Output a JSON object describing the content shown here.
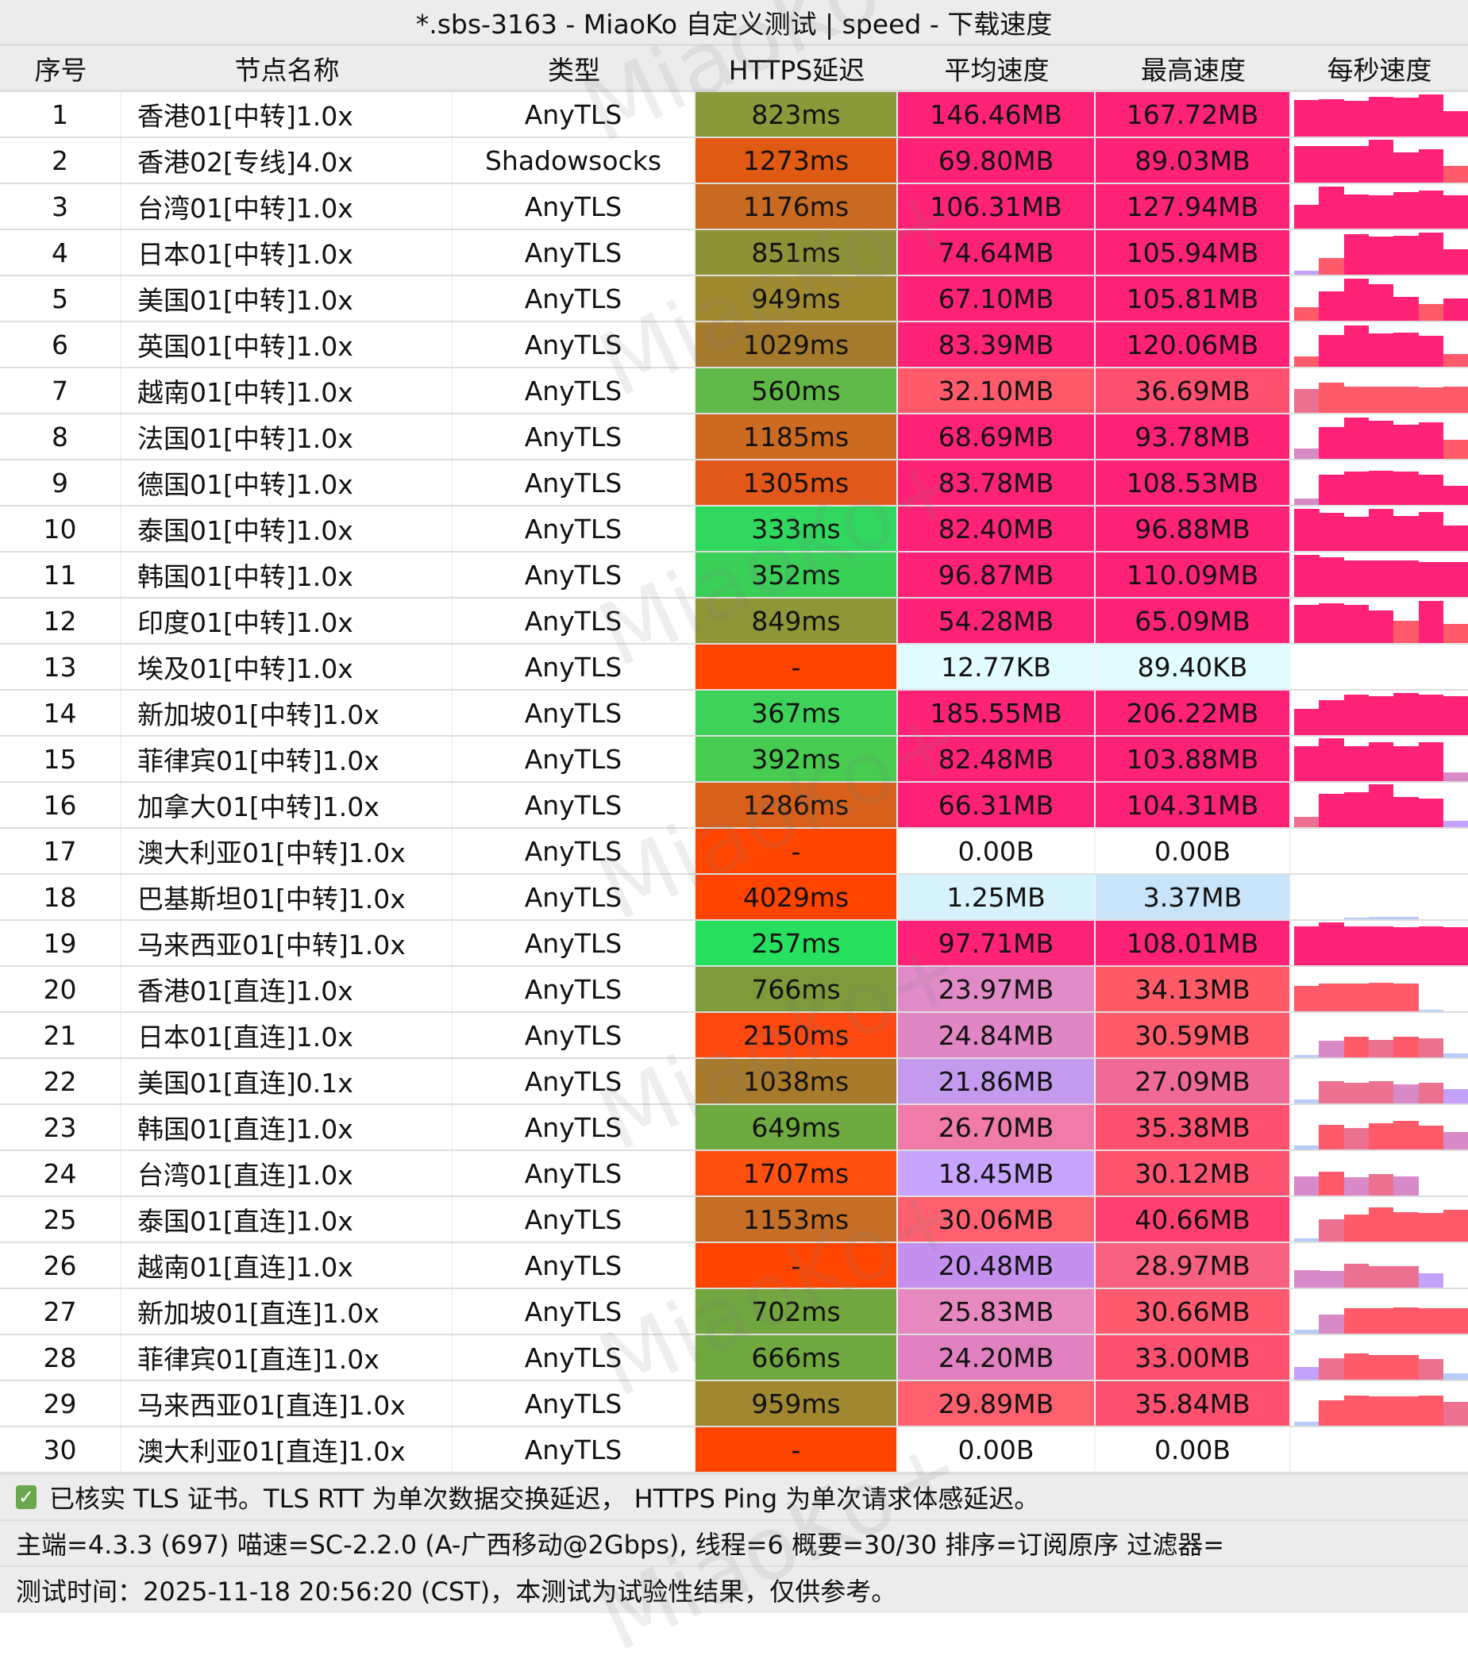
{
  "title": "*.sbs-3163 - MiaoKo 自定义测试 | speed - 下载速度",
  "watermark": "MiaoKo+",
  "columns": [
    "序号",
    "节点名称",
    "类型",
    "HTTPS延迟",
    "平均速度",
    "最高速度",
    "每秒速度"
  ],
  "rows": [
    {
      "idx": "1",
      "name": "香港01[中转]1.0x",
      "type": "AnyTLS",
      "latency": "823ms",
      "lat_color": "#8a9a3a",
      "avg": "146.46MB",
      "avg_color": "#ff2277",
      "max": "167.72MB",
      "max_color": "#ff2277",
      "bars": [
        0.85,
        0.87,
        0.83,
        0.92,
        0.9,
        0.98,
        0.6
      ]
    },
    {
      "idx": "2",
      "name": "香港02[专线]4.0x",
      "type": "Shadowsocks",
      "latency": "1273ms",
      "lat_color": "#e05a14",
      "avg": "69.80MB",
      "avg_color": "#ff2277",
      "max": "89.03MB",
      "max_color": "#ff2277",
      "bars": [
        0.85,
        0.85,
        0.85,
        1.0,
        0.7,
        0.78,
        0.38
      ]
    },
    {
      "idx": "3",
      "name": "台湾01[中转]1.0x",
      "type": "AnyTLS",
      "latency": "1176ms",
      "lat_color": "#c86a22",
      "avg": "106.31MB",
      "avg_color": "#ff2277",
      "max": "127.94MB",
      "max_color": "#ff2277",
      "bars": [
        0.55,
        0.98,
        0.8,
        0.78,
        0.85,
        0.88,
        0.78
      ]
    },
    {
      "idx": "4",
      "name": "日本01[中转]1.0x",
      "type": "AnyTLS",
      "latency": "851ms",
      "lat_color": "#8e9236",
      "avg": "74.64MB",
      "avg_color": "#ff2277",
      "max": "105.94MB",
      "max_color": "#ff2277",
      "bars": [
        0.1,
        0.38,
        0.95,
        0.88,
        0.9,
        0.98,
        0.6
      ]
    },
    {
      "idx": "5",
      "name": "美国01[中转]1.0x",
      "type": "AnyTLS",
      "latency": "949ms",
      "lat_color": "#a08a30",
      "avg": "67.10MB",
      "avg_color": "#ff2277",
      "max": "105.81MB",
      "max_color": "#ff2277",
      "bars": [
        0.32,
        0.68,
        0.98,
        0.85,
        0.55,
        0.38,
        0.52
      ]
    },
    {
      "idx": "6",
      "name": "英国01[中转]1.0x",
      "type": "AnyTLS",
      "latency": "1029ms",
      "lat_color": "#a47a2c",
      "avg": "83.39MB",
      "avg_color": "#ff2277",
      "max": "120.06MB",
      "max_color": "#ff2277",
      "bars": [
        0.25,
        0.75,
        0.96,
        0.78,
        0.8,
        0.73,
        0.3
      ]
    },
    {
      "idx": "7",
      "name": "越南01[中转]1.0x",
      "type": "AnyTLS",
      "latency": "560ms",
      "lat_color": "#60b848",
      "avg": "32.10MB",
      "avg_color": "#ff5a6a",
      "max": "36.69MB",
      "max_color": "#ff5070",
      "bars": [
        0.55,
        0.7,
        0.62,
        0.62,
        0.62,
        0.6,
        0.62
      ]
    },
    {
      "idx": "8",
      "name": "法国01[中转]1.0x",
      "type": "AnyTLS",
      "latency": "1185ms",
      "lat_color": "#cc6a22",
      "avg": "68.69MB",
      "avg_color": "#ff2277",
      "max": "93.78MB",
      "max_color": "#ff2277",
      "bars": [
        0.25,
        0.75,
        0.96,
        0.88,
        0.8,
        0.85,
        0.45
      ]
    },
    {
      "idx": "9",
      "name": "德国01[中转]1.0x",
      "type": "AnyTLS",
      "latency": "1305ms",
      "lat_color": "#e2581a",
      "avg": "83.78MB",
      "avg_color": "#ff2277",
      "max": "108.53MB",
      "max_color": "#ff2277",
      "bars": [
        0.15,
        0.7,
        0.78,
        0.8,
        0.78,
        0.7,
        0.45
      ]
    },
    {
      "idx": "10",
      "name": "泰国01[中转]1.0x",
      "type": "AnyTLS",
      "latency": "333ms",
      "lat_color": "#30d860",
      "avg": "82.40MB",
      "avg_color": "#ff2277",
      "max": "96.88MB",
      "max_color": "#ff2277",
      "bars": [
        0.98,
        0.88,
        0.8,
        0.98,
        0.82,
        0.9,
        0.6
      ]
    },
    {
      "idx": "11",
      "name": "韩国01[中转]1.0x",
      "type": "AnyTLS",
      "latency": "352ms",
      "lat_color": "#3ad058",
      "avg": "96.87MB",
      "avg_color": "#ff2277",
      "max": "110.09MB",
      "max_color": "#ff2277",
      "bars": [
        0.98,
        0.92,
        0.85,
        0.85,
        0.85,
        0.82,
        0.82
      ]
    },
    {
      "idx": "12",
      "name": "印度01[中转]1.0x",
      "type": "AnyTLS",
      "latency": "849ms",
      "lat_color": "#8e9638",
      "avg": "54.28MB",
      "avg_color": "#ff2277",
      "max": "65.09MB",
      "max_color": "#ff2277",
      "bars": [
        0.88,
        0.92,
        0.88,
        0.76,
        0.52,
        0.98,
        0.45
      ]
    },
    {
      "idx": "13",
      "name": "埃及01[中转]1.0x",
      "type": "AnyTLS",
      "latency": "-",
      "lat_color": "#ff4400",
      "avg": "12.77KB",
      "avg_color": "#e0fcff",
      "max": "89.40KB",
      "max_color": "#e0fcff",
      "bars": []
    },
    {
      "idx": "14",
      "name": "新加坡01[中转]1.0x",
      "type": "AnyTLS",
      "latency": "367ms",
      "lat_color": "#3ed25a",
      "avg": "185.55MB",
      "avg_color": "#ff2277",
      "max": "206.22MB",
      "max_color": "#ff2277",
      "bars": [
        0.62,
        0.82,
        0.95,
        0.9,
        0.98,
        0.95,
        0.9
      ]
    },
    {
      "idx": "15",
      "name": "菲律宾01[中转]1.0x",
      "type": "AnyTLS",
      "latency": "392ms",
      "lat_color": "#48cc50",
      "avg": "82.48MB",
      "avg_color": "#ff2277",
      "max": "103.88MB",
      "max_color": "#ff2277",
      "bars": [
        0.82,
        1.0,
        0.82,
        0.9,
        0.82,
        0.9,
        0.2
      ]
    },
    {
      "idx": "16",
      "name": "加拿大01[中转]1.0x",
      "type": "AnyTLS",
      "latency": "1286ms",
      "lat_color": "#d8601a",
      "avg": "66.31MB",
      "avg_color": "#ff2277",
      "max": "104.31MB",
      "max_color": "#ff2277",
      "bars": [
        0.25,
        0.78,
        0.82,
        1.0,
        0.7,
        0.66,
        0.15
      ]
    },
    {
      "idx": "17",
      "name": "澳大利亚01[中转]1.0x",
      "type": "AnyTLS",
      "latency": "-",
      "lat_color": "#ff4400",
      "avg": "0.00B",
      "avg_color": "#ffffff",
      "max": "0.00B",
      "max_color": "#ffffff",
      "bars": []
    },
    {
      "idx": "18",
      "name": "巴基斯坦01[中转]1.0x",
      "type": "AnyTLS",
      "latency": "4029ms",
      "lat_color": "#ff4400",
      "avg": "1.25MB",
      "avg_color": "#d6f2fc",
      "max": "3.37MB",
      "max_color": "#c8e4fa",
      "bars": [
        0,
        0,
        0.03,
        0.05,
        0.05,
        0,
        0
      ]
    },
    {
      "idx": "19",
      "name": "马来西亚01[中转]1.0x",
      "type": "AnyTLS",
      "latency": "257ms",
      "lat_color": "#28e060",
      "avg": "97.71MB",
      "avg_color": "#ff2277",
      "max": "108.01MB",
      "max_color": "#ff2277",
      "bars": [
        0.9,
        1.0,
        0.9,
        0.9,
        0.88,
        0.9,
        0.88
      ]
    },
    {
      "idx": "20",
      "name": "香港01[直连]1.0x",
      "type": "AnyTLS",
      "latency": "766ms",
      "lat_color": "#7e9a3a",
      "avg": "23.97MB",
      "avg_color": "#e08ac8",
      "max": "34.13MB",
      "max_color": "#ff5a66",
      "bars": [
        0.6,
        0.65,
        0.65,
        0.67,
        0.65,
        0.03,
        0
      ]
    },
    {
      "idx": "21",
      "name": "日本01[直连]1.0x",
      "type": "AnyTLS",
      "latency": "2150ms",
      "lat_color": "#ff4810",
      "avg": "24.84MB",
      "avg_color": "#e086c4",
      "max": "30.59MB",
      "max_color": "#ff5a6a",
      "bars": [
        0.05,
        0.38,
        0.48,
        0.4,
        0.48,
        0.45,
        0.1
      ]
    },
    {
      "idx": "22",
      "name": "美国01[直连]0.1x",
      "type": "AnyTLS",
      "latency": "1038ms",
      "lat_color": "#a87a2c",
      "avg": "21.86MB",
      "avg_color": "#c49aee",
      "max": "27.09MB",
      "max_color": "#f06a98",
      "bars": [
        0.1,
        0.52,
        0.48,
        0.52,
        0.45,
        0.48,
        0.33
      ]
    },
    {
      "idx": "23",
      "name": "韩国01[直连]1.0x",
      "type": "AnyTLS",
      "latency": "649ms",
      "lat_color": "#6eaa40",
      "avg": "26.70MB",
      "avg_color": "#f07aa8",
      "max": "35.38MB",
      "max_color": "#ff5070",
      "bars": [
        0.1,
        0.58,
        0.5,
        0.62,
        0.67,
        0.56,
        0.4
      ]
    },
    {
      "idx": "24",
      "name": "台湾01[直连]1.0x",
      "type": "AnyTLS",
      "latency": "1707ms",
      "lat_color": "#ff5010",
      "avg": "18.45MB",
      "avg_color": "#c8a4ff",
      "max": "30.12MB",
      "max_color": "#ff5470",
      "bars": [
        0.45,
        0.55,
        0.43,
        0.5,
        0.45,
        0,
        0
      ]
    },
    {
      "idx": "25",
      "name": "泰国01[直连]1.0x",
      "type": "AnyTLS",
      "latency": "1153ms",
      "lat_color": "#c66e26",
      "avg": "30.06MB",
      "avg_color": "#ff6070",
      "max": "40.66MB",
      "max_color": "#ff4070",
      "bars": [
        0.08,
        0.52,
        0.63,
        0.8,
        0.68,
        0.66,
        0.75
      ]
    },
    {
      "idx": "26",
      "name": "越南01[直连]1.0x",
      "type": "AnyTLS",
      "latency": "-",
      "lat_color": "#ff4400",
      "avg": "20.48MB",
      "avg_color": "#c490f0",
      "max": "28.97MB",
      "max_color": "#f86080",
      "bars": [
        0.4,
        0.38,
        0.55,
        0.5,
        0.5,
        0.33,
        0
      ]
    },
    {
      "idx": "27",
      "name": "新加坡01[直连]1.0x",
      "type": "AnyTLS",
      "latency": "702ms",
      "lat_color": "#72a63e",
      "avg": "25.83MB",
      "avg_color": "#e888c0",
      "max": "30.66MB",
      "max_color": "#ff5a70",
      "bars": [
        0.1,
        0.45,
        0.6,
        0.6,
        0.62,
        0.6,
        0.6
      ]
    },
    {
      "idx": "28",
      "name": "菲律宾01[直连]1.0x",
      "type": "AnyTLS",
      "latency": "666ms",
      "lat_color": "#70a840",
      "avg": "24.20MB",
      "avg_color": "#e080c0",
      "max": "33.00MB",
      "max_color": "#ff5070",
      "bars": [
        0.3,
        0.5,
        0.62,
        0.58,
        0.57,
        0.48,
        0.15
      ]
    },
    {
      "idx": "29",
      "name": "马来西亚01[直连]1.0x",
      "type": "AnyTLS",
      "latency": "959ms",
      "lat_color": "#a08830",
      "avg": "29.89MB",
      "avg_color": "#ff6070",
      "max": "35.84MB",
      "max_color": "#ff5070",
      "bars": [
        0.1,
        0.6,
        0.7,
        0.68,
        0.68,
        0.7,
        0.55
      ]
    },
    {
      "idx": "30",
      "name": "澳大利亚01[直连]1.0x",
      "type": "AnyTLS",
      "latency": "-",
      "lat_color": "#ff4400",
      "avg": "0.00B",
      "avg_color": "#ffffff",
      "max": "0.00B",
      "max_color": "#ffffff",
      "bars": []
    }
  ],
  "footer": {
    "tls_note": "已核实 TLS 证书。TLS RTT 为单次数据交换延迟， HTTPS Ping 为单次请求体感延迟。",
    "info": "主端=4.3.3 (697) 喵速=SC-2.2.0 (A-广西移动@2Gbps), 线程=6 概要=30/30 排序=订阅原序 过滤器=",
    "time": "测试时间：2025-11-18 20:56:20 (CST)，本测试为试验性结果，仅供参考。"
  }
}
